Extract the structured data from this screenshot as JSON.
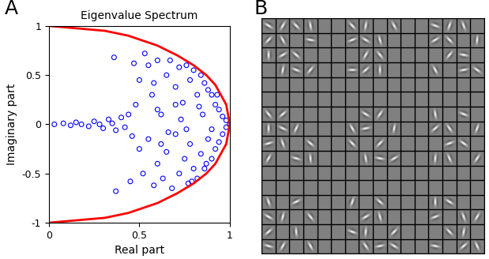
{
  "chart_data": [
    {
      "type": "scatter",
      "panel_label": "A",
      "title": "Eigenvalue Spectrum",
      "x_label": "Real part",
      "y_label": "Imaginary part",
      "xlim": [
        0,
        1
      ],
      "ylim": [
        -1,
        1
      ],
      "xticks": [
        0,
        0.5,
        1
      ],
      "yticks": [
        -1,
        -0.5,
        0,
        0.5,
        1
      ],
      "series": [
        {
          "type": "scatter",
          "color": "#0000ff",
          "marker": "circle",
          "x": [
            0.03,
            0.08,
            0.12,
            0.15,
            0.18,
            0.22,
            0.25,
            0.28,
            0.3,
            0.33,
            0.35,
            0.37,
            0.4,
            0.42,
            0.44,
            0.46,
            0.36,
            0.37,
            0.48,
            0.5,
            0.5,
            0.52,
            0.55,
            0.55,
            0.57,
            0.58,
            0.6,
            0.6,
            0.62,
            0.63,
            0.65,
            0.65,
            0.67,
            0.68,
            0.7,
            0.7,
            0.72,
            0.72,
            0.74,
            0.75,
            0.76,
            0.77,
            0.78,
            0.78,
            0.8,
            0.8,
            0.82,
            0.82,
            0.84,
            0.84,
            0.86,
            0.86,
            0.88,
            0.88,
            0.9,
            0.9,
            0.92,
            0.92,
            0.94,
            0.94,
            0.96,
            0.96,
            0.98,
            0.98,
            1.0,
            0.53,
            0.47,
            0.45,
            0.6,
            0.66,
            0.73,
            0.85,
            0.9,
            0.7,
            0.62,
            0.58,
            0.76,
            0.83,
            0.79,
            0.87,
            0.93
          ],
          "y": [
            0,
            0.01,
            -0.01,
            0.02,
            0,
            -0.02,
            0.03,
            0,
            -0.04,
            0.05,
            0.01,
            -0.06,
            0.07,
            -0.03,
            0.1,
            -0.12,
            0.68,
            -0.68,
            0.2,
            -0.25,
            0.45,
            -0.5,
            0.6,
            -0.15,
            0.3,
            -0.62,
            0.65,
            -0.4,
            0.1,
            -0.55,
            0.5,
            -0.28,
            0.65,
            -0.65,
            0.38,
            -0.1,
            0.58,
            -0.5,
            0.22,
            -0.35,
            0.6,
            -0.6,
            0.45,
            -0.2,
            0.55,
            -0.45,
            0.3,
            -0.55,
            0.5,
            -0.3,
            0.42,
            -0.45,
            0.35,
            -0.15,
            0.3,
            -0.35,
            0.2,
            -0.25,
            0.15,
            -0.18,
            0.08,
            -0.1,
            0.04,
            -0.03,
            0.0,
            0.72,
            0.62,
            -0.58,
            0.15,
            -0.08,
            0.05,
            0.1,
            -0.05,
            0.2,
            -0.2,
            0.42,
            -0.05,
            0.18,
            -0.58,
            -0.4,
            0.3
          ]
        },
        {
          "type": "line",
          "color": "#ff0000",
          "x": [
            0,
            0.31,
            0.44,
            0.6,
            0.71,
            0.8,
            0.87,
            0.92,
            0.95,
            0.98,
            0.99,
            1,
            0.99,
            0.98,
            0.95,
            0.92,
            0.87,
            0.8,
            0.71,
            0.6,
            0.44,
            0.31,
            0
          ],
          "y": [
            -1,
            -0.95,
            -0.9,
            -0.8,
            -0.7,
            -0.6,
            -0.5,
            -0.4,
            -0.3,
            -0.2,
            -0.1,
            0,
            0.1,
            0.2,
            0.3,
            0.4,
            0.5,
            0.6,
            0.7,
            0.8,
            0.9,
            0.95,
            1
          ]
        }
      ]
    },
    {
      "type": "image",
      "panel_label": "B",
      "tick_labels": false,
      "rows": 16,
      "cols": 16,
      "cells": [
        [
          0,
          0,
          30
        ],
        [
          0,
          1,
          120
        ],
        [
          0,
          2,
          45
        ],
        [
          0,
          3,
          80
        ],
        [
          1,
          0,
          135
        ],
        [
          1,
          1,
          60
        ],
        [
          1,
          3,
          10
        ],
        [
          2,
          0,
          90
        ],
        [
          2,
          1,
          150
        ],
        [
          2,
          2,
          40
        ],
        [
          3,
          1,
          100
        ],
        [
          3,
          2,
          20
        ],
        [
          3,
          3,
          130
        ],
        [
          0,
          6,
          45
        ],
        [
          0,
          7,
          100
        ],
        [
          1,
          6,
          160
        ],
        [
          1,
          7,
          30
        ],
        [
          1,
          8,
          75
        ],
        [
          2,
          7,
          120
        ],
        [
          2,
          8,
          50
        ],
        [
          3,
          6,
          0
        ],
        [
          3,
          7,
          140
        ],
        [
          3,
          8,
          90
        ],
        [
          0,
          9,
          60
        ],
        [
          0,
          12,
          20
        ],
        [
          0,
          13,
          110
        ],
        [
          0,
          14,
          70
        ],
        [
          1,
          12,
          150
        ],
        [
          1,
          13,
          45
        ],
        [
          1,
          15,
          95
        ],
        [
          2,
          13,
          130
        ],
        [
          2,
          14,
          10
        ],
        [
          3,
          12,
          60
        ],
        [
          3,
          14,
          170
        ],
        [
          3,
          15,
          35
        ],
        [
          6,
          0,
          50
        ],
        [
          6,
          1,
          140
        ],
        [
          7,
          0,
          90
        ],
        [
          7,
          1,
          25
        ],
        [
          7,
          2,
          115
        ],
        [
          8,
          0,
          165
        ],
        [
          8,
          1,
          70
        ],
        [
          8,
          3,
          40
        ],
        [
          9,
          0,
          120
        ],
        [
          9,
          2,
          15
        ],
        [
          9,
          3,
          85
        ],
        [
          6,
          7,
          30
        ],
        [
          6,
          8,
          125
        ],
        [
          7,
          6,
          60
        ],
        [
          7,
          7,
          170
        ],
        [
          7,
          9,
          100
        ],
        [
          8,
          6,
          45
        ],
        [
          8,
          8,
          135
        ],
        [
          9,
          7,
          80
        ],
        [
          9,
          8,
          10
        ],
        [
          9,
          9,
          150
        ],
        [
          6,
          12,
          80
        ],
        [
          6,
          14,
          20
        ],
        [
          7,
          12,
          140
        ],
        [
          7,
          13,
          55
        ],
        [
          7,
          15,
          110
        ],
        [
          8,
          13,
          160
        ],
        [
          8,
          14,
          35
        ],
        [
          9,
          12,
          95
        ],
        [
          9,
          13,
          65
        ],
        [
          9,
          15,
          125
        ],
        [
          12,
          0,
          70
        ],
        [
          12,
          2,
          155
        ],
        [
          13,
          0,
          30
        ],
        [
          13,
          1,
          105
        ],
        [
          13,
          3,
          50
        ],
        [
          14,
          0,
          140
        ],
        [
          14,
          2,
          85
        ],
        [
          15,
          0,
          15
        ],
        [
          15,
          1,
          120
        ],
        [
          15,
          3,
          60
        ],
        [
          12,
          6,
          110
        ],
        [
          12,
          8,
          40
        ],
        [
          13,
          7,
          150
        ],
        [
          13,
          8,
          75
        ],
        [
          14,
          6,
          20
        ],
        [
          14,
          7,
          95
        ],
        [
          14,
          9,
          135
        ],
        [
          15,
          7,
          55
        ],
        [
          15,
          8,
          170
        ],
        [
          15,
          9,
          30
        ],
        [
          12,
          12,
          90
        ],
        [
          12,
          13,
          30
        ],
        [
          13,
          12,
          160
        ],
        [
          13,
          14,
          70
        ],
        [
          13,
          15,
          120
        ],
        [
          14,
          13,
          45
        ],
        [
          14,
          14,
          100
        ],
        [
          15,
          12,
          10
        ],
        [
          15,
          14,
          140
        ],
        [
          15,
          15,
          65
        ]
      ]
    }
  ]
}
